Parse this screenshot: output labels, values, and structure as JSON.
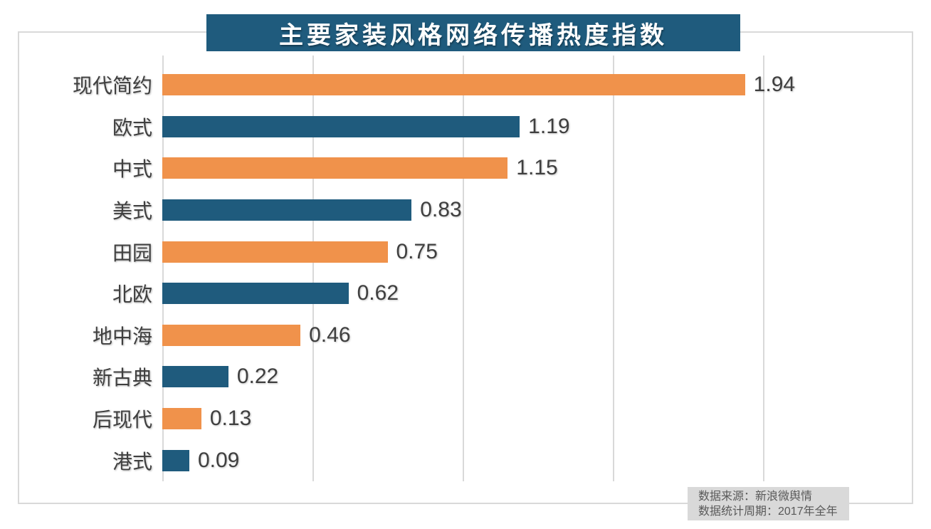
{
  "title": "主要家装风格网络传播热度指数",
  "source": {
    "line1": "数据来源：新浪微舆情",
    "line2": "数据统计周期：2017年全年"
  },
  "colors": {
    "banner_bg": "#1f5b7d",
    "bar_orange": "#f0924b",
    "bar_teal": "#1f5b7d",
    "grid": "#d9d9d9",
    "label_text": "#3f3f3f",
    "source_text": "#595959",
    "source_bg": "#d9d9d9",
    "title_text": "#ffffff"
  },
  "chart_data": {
    "type": "bar",
    "orientation": "horizontal",
    "title": "主要家装风格网络传播热度指数",
    "categories": [
      "现代简约",
      "欧式",
      "中式",
      "美式",
      "田园",
      "北欧",
      "地中海",
      "新古典",
      "后现代",
      "港式"
    ],
    "values": [
      1.94,
      1.19,
      1.15,
      0.83,
      0.75,
      0.62,
      0.46,
      0.22,
      0.13,
      0.09
    ],
    "value_labels": [
      "1.94",
      "1.19",
      "1.15",
      "0.83",
      "0.75",
      "0.62",
      "0.46",
      "0.22",
      "0.13",
      "0.09"
    ],
    "bar_color_pattern": [
      "#f0924b",
      "#1f5b7d"
    ],
    "xlabel": "",
    "ylabel": "",
    "xlim": [
      0,
      2.5
    ],
    "gridline_values": [
      0.5,
      1.0,
      1.5,
      2.0
    ],
    "grid": true,
    "legend": false,
    "annotations": [
      "数据来源：新浪微舆情",
      "数据统计周期：2017年全年"
    ]
  }
}
